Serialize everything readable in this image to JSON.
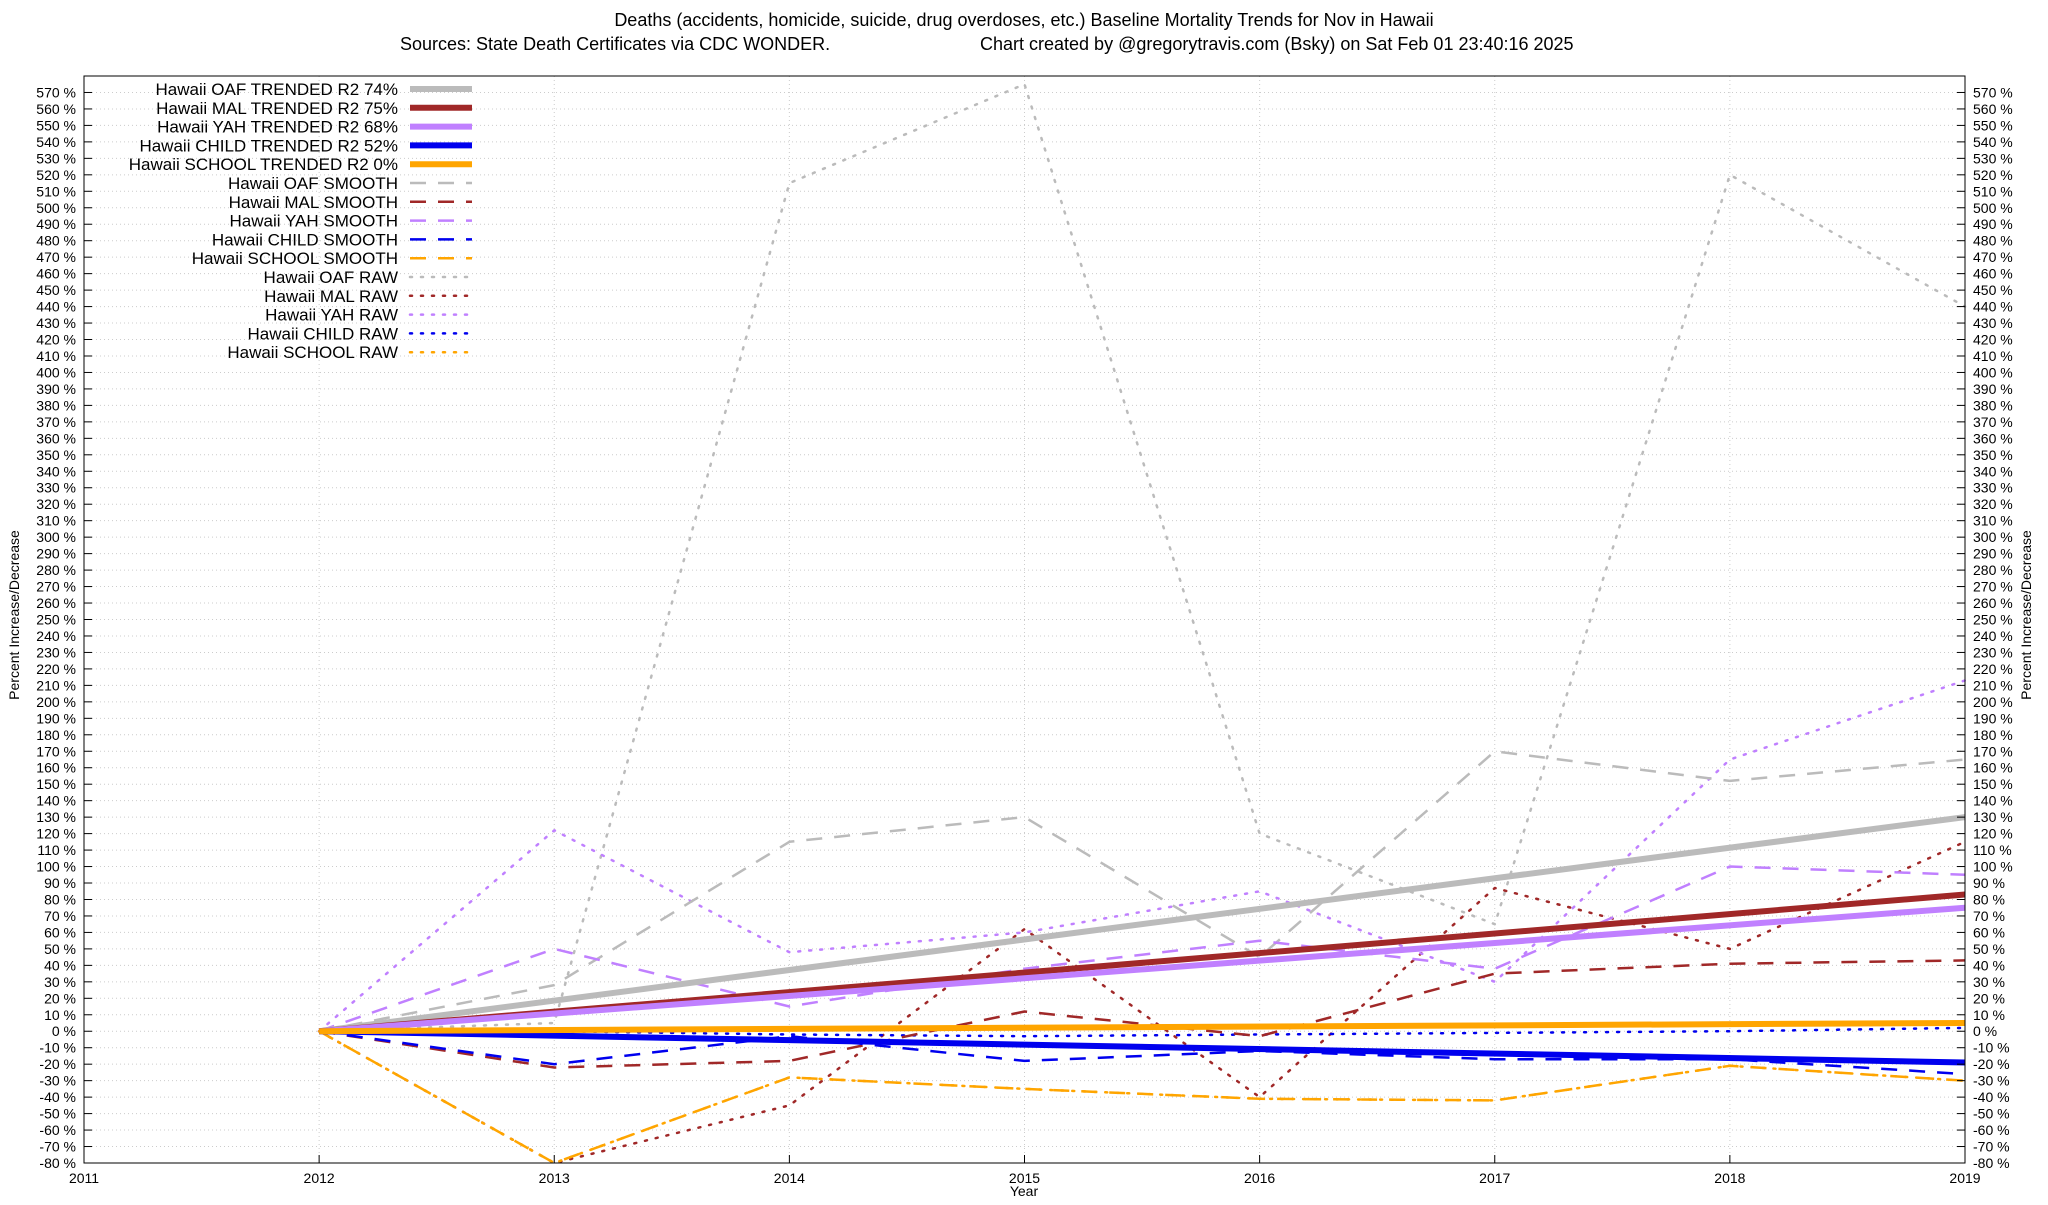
{
  "chart_data": {
    "type": "line",
    "title": "Deaths (accidents, homicide, suicide, drug overdoses, etc.)  Baseline Mortality Trends for Nov in Hawaii",
    "subtitle_left": "Sources: State Death Certificates via CDC WONDER.",
    "subtitle_right": "Chart created by @gregorytravis.com (Bsky) on Sat Feb 01 23:40:16 2025",
    "xlabel": "Year",
    "ylabel": "Percent Increase/Decrease",
    "ylabel_right": "Percent Increase/Decrease",
    "xlim": [
      2011,
      2019
    ],
    "ylim": [
      -80,
      580
    ],
    "x_ticks": [
      2011,
      2012,
      2013,
      2014,
      2015,
      2016,
      2017,
      2018,
      2019
    ],
    "y_tick_step": 10,
    "y_tick_suffix": " %",
    "grid": true,
    "legend_position": "top-left",
    "series": [
      {
        "name": "Hawaii OAF TRENDED R2  74%",
        "style": "trend",
        "color": "#bbbbbb",
        "x": [
          2012,
          2019
        ],
        "y": [
          0,
          130
        ]
      },
      {
        "name": "Hawaii MAL TRENDED R2  75%",
        "style": "trend",
        "color": "#a02828",
        "x": [
          2012,
          2019
        ],
        "y": [
          0,
          83
        ]
      },
      {
        "name": "Hawaii YAH TRENDED R2  68%",
        "style": "trend",
        "color": "#c080ff",
        "x": [
          2012,
          2019
        ],
        "y": [
          0,
          75
        ]
      },
      {
        "name": "Hawaii CHILD TRENDED R2  52%",
        "style": "trend",
        "color": "#0000ee",
        "x": [
          2012,
          2019
        ],
        "y": [
          0,
          -19
        ]
      },
      {
        "name": "Hawaii SCHOOL TRENDED R2   0%",
        "style": "trend",
        "color": "#ffa500",
        "x": [
          2012,
          2019
        ],
        "y": [
          0,
          5
        ]
      },
      {
        "name": "Hawaii OAF SMOOTH",
        "style": "smooth",
        "color": "#bbbbbb",
        "x": [
          2012,
          2013,
          2014,
          2015,
          2016,
          2017,
          2018,
          2019
        ],
        "y": [
          0,
          28,
          115,
          130,
          45,
          170,
          152,
          165
        ]
      },
      {
        "name": "Hawaii MAL SMOOTH",
        "style": "smooth",
        "color": "#a02828",
        "x": [
          2012,
          2013,
          2014,
          2015,
          2016,
          2017,
          2018,
          2019
        ],
        "y": [
          0,
          -22,
          -18,
          12,
          -3,
          35,
          41,
          43
        ]
      },
      {
        "name": "Hawaii YAH SMOOTH",
        "style": "smooth",
        "color": "#c080ff",
        "x": [
          2012,
          2013,
          2014,
          2015,
          2016,
          2017,
          2018,
          2019
        ],
        "y": [
          0,
          50,
          15,
          38,
          55,
          38,
          100,
          95
        ]
      },
      {
        "name": "Hawaii CHILD SMOOTH",
        "style": "smooth",
        "color": "#0000ee",
        "x": [
          2012,
          2013,
          2014,
          2015,
          2016,
          2017,
          2018,
          2019
        ],
        "y": [
          0,
          -20,
          -3,
          -18,
          -12,
          -17,
          -17,
          -26
        ]
      },
      {
        "name": "Hawaii SCHOOL SMOOTH",
        "style": "smooth",
        "color": "#ffa500",
        "x": [
          2012,
          2013,
          2014,
          2015,
          2016,
          2017,
          2018,
          2019
        ],
        "y": [
          0,
          -80,
          -28,
          -35,
          -41,
          -42,
          -21,
          -30
        ]
      },
      {
        "name": "Hawaii OAF RAW",
        "style": "raw",
        "color": "#bbbbbb",
        "x": [
          2012,
          2013,
          2014,
          2015,
          2016,
          2017,
          2018,
          2019
        ],
        "y": [
          0,
          5,
          515,
          575,
          120,
          65,
          520,
          440
        ]
      },
      {
        "name": "Hawaii MAL RAW",
        "style": "raw",
        "color": "#a02828",
        "x": [
          2012,
          2013,
          2014,
          2015,
          2016,
          2017,
          2018,
          2019
        ],
        "y": [
          0,
          -80,
          -45,
          62,
          -40,
          87,
          50,
          115
        ]
      },
      {
        "name": "Hawaii YAH RAW",
        "style": "raw",
        "color": "#c080ff",
        "x": [
          2012,
          2013,
          2014,
          2015,
          2016,
          2017,
          2018,
          2019
        ],
        "y": [
          0,
          122,
          48,
          60,
          85,
          30,
          165,
          213
        ]
      },
      {
        "name": "Hawaii CHILD RAW",
        "style": "raw",
        "color": "#0000ee",
        "x": [
          2012,
          2013,
          2014,
          2015,
          2016,
          2017,
          2018,
          2019
        ],
        "y": [
          0,
          0,
          -2,
          -3,
          -2,
          -1,
          0,
          2
        ]
      },
      {
        "name": "Hawaii SCHOOL RAW",
        "style": "raw",
        "color": "#ffa500",
        "x": [
          2012,
          2013,
          2014,
          2015,
          2016,
          2017,
          2018,
          2019
        ],
        "y": [
          0,
          -80,
          -28,
          -35,
          -41,
          -42,
          -21,
          -30
        ]
      }
    ]
  }
}
